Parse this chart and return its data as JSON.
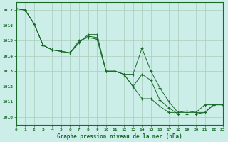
{
  "bg_color": "#cceee8",
  "grid_color": "#aaccbb",
  "line_color": "#1a6b2a",
  "xlabel": "Graphe pression niveau de la mer (hPa)",
  "xlim": [
    0,
    23
  ],
  "ylim": [
    1009.5,
    1017.5
  ],
  "yticks": [
    1010,
    1011,
    1012,
    1013,
    1014,
    1015,
    1016,
    1017
  ],
  "xticks": [
    0,
    1,
    2,
    3,
    4,
    5,
    6,
    7,
    8,
    9,
    10,
    11,
    12,
    13,
    14,
    15,
    16,
    17,
    18,
    19,
    20,
    21,
    22,
    23
  ],
  "line1_x": [
    0,
    1,
    2,
    3,
    4,
    5,
    6,
    7,
    8,
    9,
    10,
    11,
    12,
    13,
    14,
    15,
    16,
    17,
    18,
    19,
    20,
    21,
    22,
    23
  ],
  "line1_y": [
    1017.1,
    1017.0,
    1016.1,
    1014.7,
    1014.4,
    1014.3,
    1014.2,
    1015.0,
    1015.2,
    1015.1,
    1013.0,
    1013.0,
    1012.8,
    1012.0,
    1011.2,
    1011.2,
    1010.7,
    1010.3,
    1010.3,
    1010.4,
    1010.3,
    1010.8,
    1010.8,
    1010.8
  ],
  "line2_x": [
    0,
    1,
    2,
    3,
    4,
    5,
    6,
    7,
    8,
    9,
    10,
    11,
    12,
    13,
    14,
    15,
    16,
    17,
    18,
    19,
    20,
    21,
    22,
    23
  ],
  "line2_y": [
    1017.1,
    1017.0,
    1016.1,
    1014.7,
    1014.4,
    1014.3,
    1014.2,
    1014.85,
    1015.4,
    1015.4,
    1013.0,
    1013.0,
    1012.8,
    1012.8,
    1014.5,
    1013.0,
    1011.9,
    1011.0,
    1010.3,
    1010.3,
    1010.3,
    1010.3,
    1010.85,
    1010.8
  ],
  "line3_x": [
    0,
    1,
    2,
    3,
    4,
    5,
    6,
    7,
    8,
    9,
    10,
    11,
    12,
    13,
    14,
    15,
    16,
    17,
    18,
    19,
    20,
    21,
    22,
    23
  ],
  "line3_y": [
    1017.1,
    1017.0,
    1016.1,
    1014.7,
    1014.4,
    1014.3,
    1014.2,
    1014.9,
    1015.3,
    1015.2,
    1013.0,
    1013.0,
    1012.8,
    1012.0,
    1012.8,
    1012.4,
    1011.1,
    1010.6,
    1010.2,
    1010.2,
    1010.2,
    1010.3,
    1010.8,
    1010.8
  ]
}
